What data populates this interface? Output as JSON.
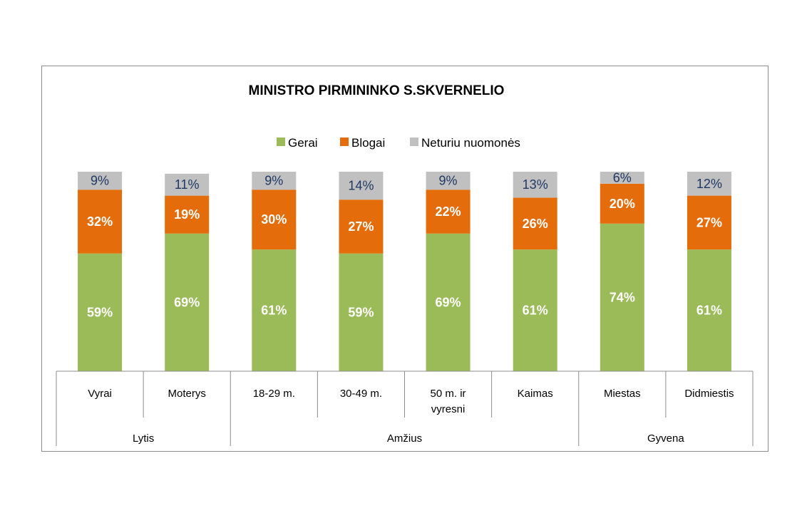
{
  "chart_data": {
    "type": "bar",
    "stacked": true,
    "title": "MINISTRO PIRMININKO  S.SKVERNELIO",
    "legend_position": "top",
    "categories": [
      [
        "Vyrai"
      ],
      [
        "Moterys"
      ],
      [
        "18-29 m."
      ],
      [
        "30-49 m."
      ],
      [
        "50 m. ir",
        "vyresni"
      ],
      [
        "Kaimas"
      ],
      [
        "Miestas"
      ],
      [
        "Didmiestis"
      ]
    ],
    "groups": [
      {
        "label": "Lytis",
        "span": 2
      },
      {
        "label": "Amžius",
        "span": 4
      },
      {
        "label": "Gyvena",
        "span": 2
      }
    ],
    "series": [
      {
        "name": "Gerai",
        "color": "#9bbb59",
        "values": [
          59,
          69,
          61,
          59,
          69,
          61,
          74,
          61
        ]
      },
      {
        "name": "Blogai",
        "color": "#e46c0a",
        "values": [
          32,
          19,
          30,
          27,
          22,
          26,
          20,
          27
        ]
      },
      {
        "name": "Neturiu nuomonės",
        "color": "#c0c0c0",
        "values": [
          9,
          11,
          9,
          14,
          9,
          13,
          6,
          12
        ]
      }
    ],
    "value_suffix": "%",
    "ylim": [
      0,
      100
    ],
    "grid": false
  }
}
